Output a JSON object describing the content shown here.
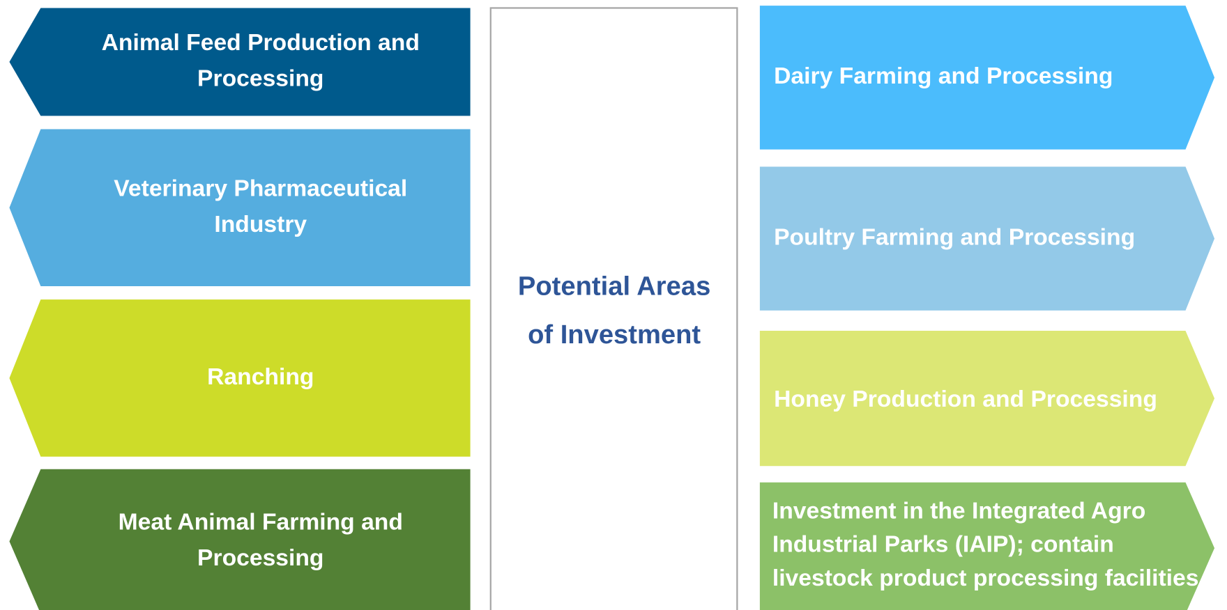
{
  "center": {
    "lines": [
      "Potential Areas",
      "of Investment"
    ]
  },
  "left": [
    {
      "lines": [
        "Animal Feed Production and",
        "Processing"
      ]
    },
    {
      "lines": [
        "Veterinary Pharmaceutical",
        "Industry"
      ]
    },
    {
      "lines": [
        "Ranching"
      ]
    },
    {
      "lines": [
        "Meat Animal Farming and",
        "Processing"
      ]
    }
  ],
  "right": [
    {
      "lines": [
        "Dairy Farming and Processing"
      ]
    },
    {
      "lines": [
        "Poultry Farming and Processing"
      ]
    },
    {
      "lines": [
        "Honey Production and Processing"
      ]
    },
    {
      "lines": [
        "Investment in the Integrated Agro",
        "Industrial Parks (IAIP); contain",
        "livestock product processing facilities"
      ]
    }
  ]
}
